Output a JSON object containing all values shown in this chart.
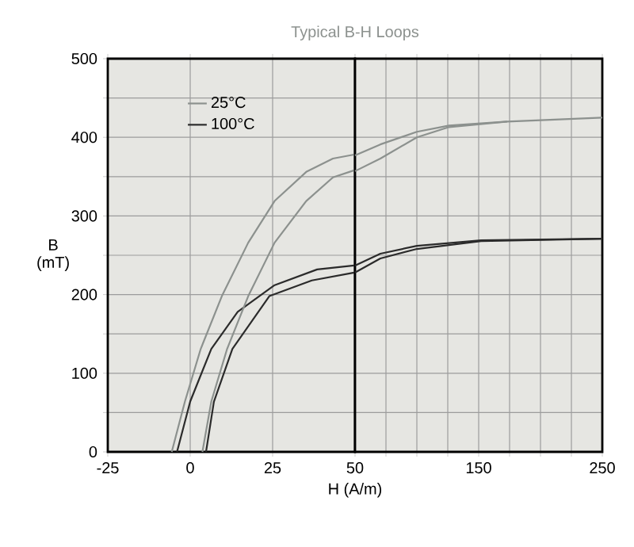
{
  "chart_data": [
    {
      "type": "line",
      "title": "Typical B-H Loops",
      "xlabel": "H (A/m)",
      "ylabel": "B (mT)",
      "xlim": [
        -25,
        50
      ],
      "ylim": [
        0,
        500
      ],
      "xticks": [
        -25,
        0,
        25,
        50
      ],
      "yticks": [
        0,
        {
          "value": 50,
          "label": null
        },
        100,
        {
          "value": 150,
          "label": null
        },
        200,
        {
          "value": 250,
          "label": null
        },
        300,
        {
          "value": 350,
          "label": null
        },
        400,
        {
          "value": 450,
          "label": null
        },
        500
      ],
      "grid": true,
      "legend": "top left",
      "series": [
        {
          "name": "25°C",
          "color": "#8c918e",
          "x": [
            -5.6,
            -1.6,
            3.2,
            9.6,
            17.6,
            25.6,
            35.2,
            43.3,
            49.7
          ],
          "values": [
            0,
            64,
            131,
            198,
            266,
            319,
            356,
            373,
            378
          ]
        },
        {
          "name": "100°C",
          "color": "#2b2b2b",
          "x": [
            -4,
            0,
            6.4,
            14.4,
            25.6,
            38.5,
            49.7
          ],
          "values": [
            0,
            64,
            131,
            178,
            212,
            232,
            237
          ]
        },
        {
          "color": "#8c918e",
          "x": [
            3.7,
            6.4,
            11.2,
            17.6,
            25.6,
            35.2,
            43.3,
            49.7
          ],
          "values": [
            0,
            64,
            131,
            198,
            266,
            319,
            349,
            358
          ]
        },
        {
          "color": "#2b2b2b",
          "x": [
            4.8,
            7.2,
            12.8,
            24,
            36.9,
            49.7
          ],
          "values": [
            0,
            64,
            131,
            198,
            218,
            228
          ]
        }
      ]
    },
    {
      "type": "line",
      "xlim": [
        50,
        250
      ],
      "ylim": [
        0,
        500
      ],
      "xticks": [
        {
          "value": 75,
          "label": null
        },
        {
          "value": 100,
          "label": null
        },
        {
          "value": 125,
          "label": null
        },
        150,
        {
          "value": 175,
          "label": null
        },
        {
          "value": 200,
          "label": null
        },
        {
          "value": 225,
          "label": null
        },
        250
      ],
      "yticks": [
        0,
        {
          "value": 50,
          "label": null
        },
        100,
        {
          "value": 150,
          "label": null
        },
        200,
        {
          "value": 250,
          "label": null
        },
        300,
        {
          "value": 350,
          "label": null
        },
        400,
        {
          "value": 450,
          "label": null
        },
        500
      ],
      "grid": true,
      "tick_labels": "x",
      "series": [
        {
          "color": "#8c918e",
          "x": [
            50,
            70.5,
            100,
            126,
            173,
            250
          ],
          "values": [
            377,
            391,
            407,
            415,
            420,
            425
          ]
        },
        {
          "color": "#8c918e",
          "x": [
            50,
            70.5,
            100,
            126,
            173
          ],
          "values": [
            357,
            373,
            400,
            413,
            420
          ]
        },
        {
          "color": "#2b2b2b",
          "x": [
            50,
            70.5,
            100,
            152,
            250
          ],
          "values": [
            237,
            252,
            262,
            269,
            271
          ]
        },
        {
          "color": "#2b2b2b",
          "x": [
            50,
            70.5,
            100,
            152,
            250
          ],
          "values": [
            228,
            246,
            258,
            268,
            271
          ]
        }
      ]
    }
  ]
}
